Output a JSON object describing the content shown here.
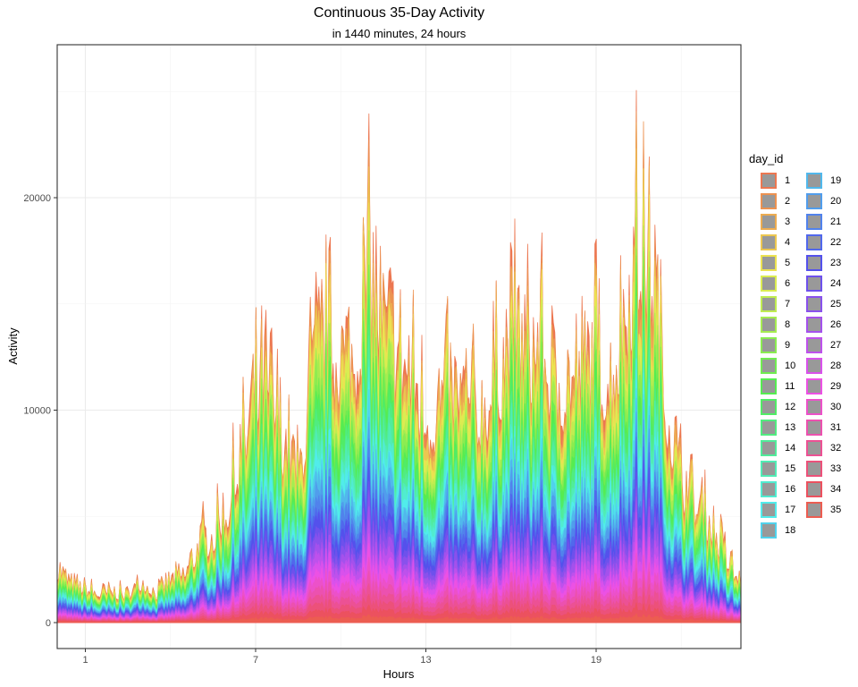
{
  "chart_data": {
    "type": "area",
    "title": "Continuous 35-Day Activity",
    "subtitle": "in 1440 minutes, 24 hours",
    "xlabel": "Hours",
    "ylabel": "Activity",
    "x_ticks": [
      1,
      7,
      13,
      19
    ],
    "y_ticks": [
      0,
      10000,
      20000
    ],
    "xlim": [
      0,
      24.1
    ],
    "ylim": [
      -1200,
      27000
    ],
    "grid": true,
    "legend": {
      "title": "day_id",
      "position": "right",
      "items": [
        "1",
        "2",
        "3",
        "4",
        "5",
        "6",
        "7",
        "8",
        "9",
        "10",
        "11",
        "12",
        "13",
        "14",
        "15",
        "16",
        "17",
        "18",
        "19",
        "20",
        "21",
        "22",
        "23",
        "24",
        "25",
        "26",
        "27",
        "28",
        "29",
        "30",
        "31",
        "32",
        "33",
        "34",
        "35"
      ]
    },
    "series_count": 35,
    "x_hours": [
      0,
      0.5,
      1,
      1.5,
      2,
      2.5,
      3,
      3.5,
      4,
      4.5,
      5,
      5.5,
      6,
      6.5,
      7,
      7.5,
      8,
      8.5,
      9,
      9.5,
      10,
      10.5,
      11,
      11.5,
      12,
      12.5,
      13,
      13.5,
      14,
      14.5,
      15,
      15.5,
      16,
      16.5,
      17,
      17.5,
      18,
      18.5,
      19,
      19.5,
      20,
      20.5,
      21,
      21.5,
      22,
      22.5,
      23,
      23.5,
      24
    ],
    "total_envelope": [
      3900,
      2600,
      2300,
      2000,
      2100,
      1900,
      2900,
      2000,
      2900,
      3300,
      5500,
      6000,
      8000,
      12000,
      16200,
      16000,
      12500,
      10000,
      17500,
      19500,
      18500,
      18500,
      24200,
      20000,
      19000,
      17500,
      14500,
      15500,
      15500,
      15300,
      14500,
      17500,
      19500,
      19000,
      20000,
      16000,
      17300,
      17000,
      19000,
      16500,
      22000,
      25900,
      24000,
      15000,
      10000,
      8500,
      7000,
      5000,
      3000
    ]
  }
}
